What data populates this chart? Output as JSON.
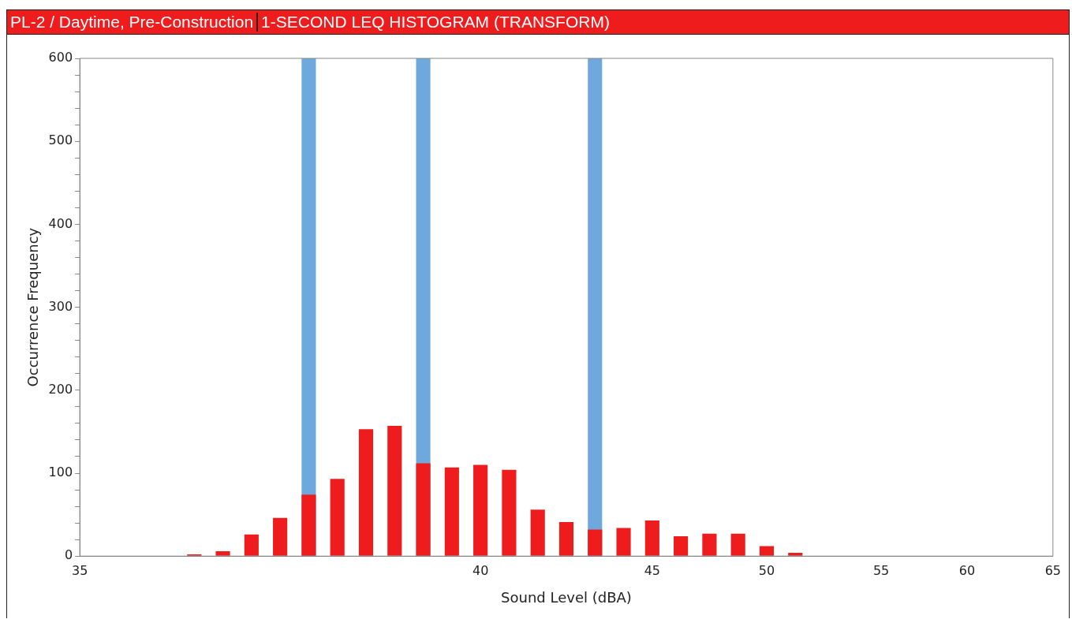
{
  "chart_data": {
    "type": "bar",
    "title": "PL-2 / Daytime, Pre-Construction",
    "subtitle": "1-SECOND LEQ HISTOGRAM (TRANSFORM)",
    "xlabel": "Sound Level (dBA)",
    "ylabel": "Occurrence Frequency",
    "categories": [
      "35",
      null,
      null,
      null,
      null,
      null,
      null,
      null,
      null,
      null,
      null,
      null,
      null,
      null,
      "40",
      null,
      null,
      null,
      null,
      null,
      "45",
      null,
      null,
      null,
      "50",
      null,
      null,
      null,
      "55",
      null,
      null,
      "60",
      null,
      null,
      "65"
    ],
    "series": [
      {
        "color": "#6fa8dc",
        "values": [
          null,
          null,
          null,
          null,
          null,
          null,
          null,
          null,
          600,
          null,
          null,
          null,
          600,
          null,
          null,
          null,
          null,
          null,
          600,
          null,
          null,
          null,
          null,
          null,
          null,
          null,
          null,
          null,
          null,
          null,
          null,
          null,
          null,
          null,
          null
        ]
      },
      {
        "color": "#ee1c1c",
        "values": [
          0,
          0,
          0,
          0,
          2,
          6,
          26,
          46,
          74,
          93,
          153,
          157,
          112,
          107,
          110,
          104,
          56,
          41,
          32,
          34,
          43,
          24,
          27,
          27,
          12,
          4,
          0,
          0,
          0,
          0,
          0,
          0,
          0,
          0,
          0
        ]
      }
    ],
    "ylim": [
      0,
      600
    ],
    "yticks": [
      0,
      {
        "value": 20,
        "label": null
      },
      {
        "value": 40,
        "label": null
      },
      {
        "value": 60,
        "label": null
      },
      {
        "value": 80,
        "label": null
      },
      100,
      {
        "value": 120,
        "label": null
      },
      {
        "value": 140,
        "label": null
      },
      {
        "value": 160,
        "label": null
      },
      {
        "value": 180,
        "label": null
      },
      200,
      {
        "value": 220,
        "label": null
      },
      {
        "value": 240,
        "label": null
      },
      {
        "value": 260,
        "label": null
      },
      {
        "value": 280,
        "label": null
      },
      300,
      {
        "value": 320,
        "label": null
      },
      {
        "value": 340,
        "label": null
      },
      {
        "value": 360,
        "label": null
      },
      {
        "value": 380,
        "label": null
      },
      400,
      {
        "value": 420,
        "label": null
      },
      {
        "value": 440,
        "label": null
      },
      {
        "value": 460,
        "label": null
      },
      {
        "value": 480,
        "label": null
      },
      500,
      {
        "value": 520,
        "label": null
      },
      {
        "value": 540,
        "label": null
      },
      {
        "value": 560,
        "label": null
      },
      {
        "value": 580,
        "label": null
      },
      600
    ],
    "grid": false,
    "legend": false
  }
}
